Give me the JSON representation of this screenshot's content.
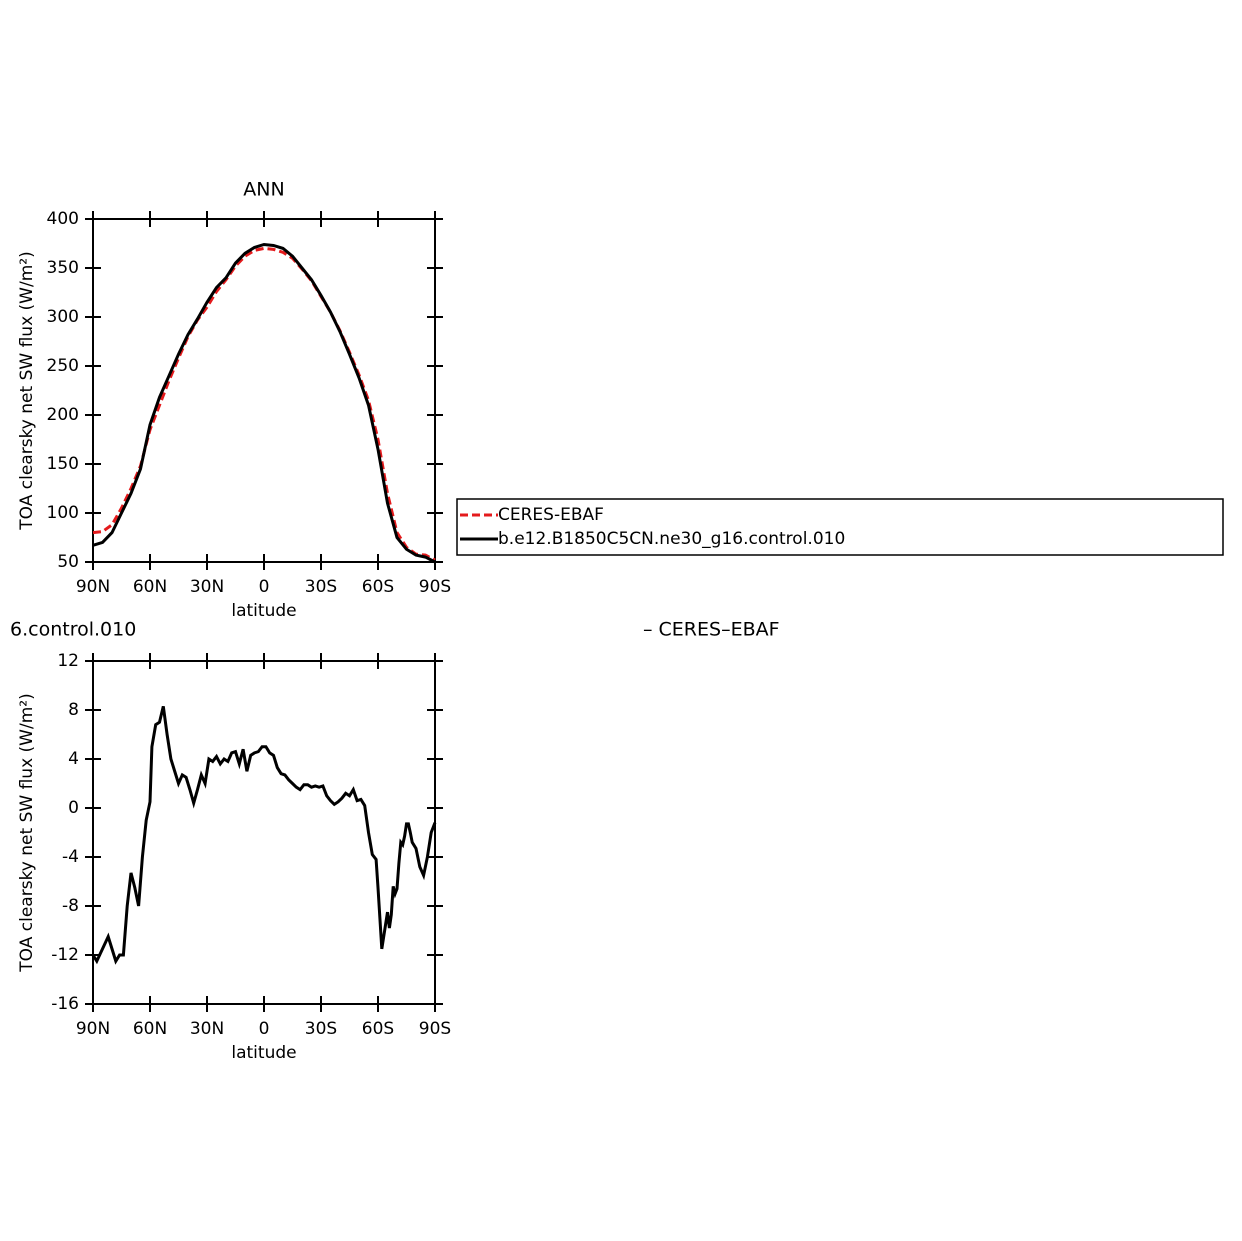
{
  "chart_data": [
    {
      "type": "line",
      "title": "ANN",
      "xlabel": "latitude",
      "ylabel": "TOA clearsky net SW flux (W/m²)",
      "xlim": [
        90,
        -90
      ],
      "xticks": [
        {
          "value": 90,
          "label": "90N"
        },
        {
          "value": 60,
          "label": "60N"
        },
        {
          "value": 30,
          "label": "30N"
        },
        0,
        {
          "value": -30,
          "label": "30S"
        },
        {
          "value": -60,
          "label": "60S"
        },
        {
          "value": -90,
          "label": "90S"
        }
      ],
      "ylim": [
        50,
        400
      ],
      "yticks": [
        50,
        100,
        150,
        200,
        250,
        300,
        350,
        400
      ],
      "legend": "right",
      "x": [
        90,
        85,
        80,
        75,
        70,
        65,
        60,
        55,
        50,
        45,
        40,
        35,
        30,
        25,
        20,
        15,
        10,
        5,
        0,
        -5,
        -10,
        -15,
        -20,
        -25,
        -30,
        -35,
        -40,
        -45,
        -50,
        -55,
        -60,
        -65,
        -70,
        -75,
        -80,
        -85,
        -90
      ],
      "series": [
        {
          "name": "CERES-EBAF",
          "color": "#e41a1c",
          "line_style": "dashed",
          "values": [
            80,
            81,
            88,
            105,
            125,
            148,
            185,
            210,
            235,
            258,
            280,
            297,
            310,
            326,
            338,
            352,
            362,
            368,
            370,
            369,
            366,
            360,
            349,
            337,
            321,
            305,
            286,
            264,
            241,
            215,
            175,
            120,
            80,
            65,
            58,
            57,
            52
          ]
        },
        {
          "name": "b.e12.B1850C5CN.ne30_g16.control.010",
          "color": "#000000",
          "line_style": "solid",
          "values": [
            67,
            70,
            80,
            100,
            120,
            145,
            190,
            218,
            240,
            262,
            282,
            298,
            315,
            330,
            340,
            355,
            365,
            371,
            374,
            373,
            370,
            362,
            350,
            338,
            322,
            305,
            285,
            262,
            238,
            210,
            165,
            110,
            75,
            63,
            57,
            55,
            50
          ]
        }
      ]
    },
    {
      "type": "line",
      "title": "6.control.010",
      "title_right": "– CERES–EBAF",
      "xlabel": "latitude",
      "ylabel": "TOA clearsky net SW flux (W/m²)",
      "xlim": [
        90,
        -90
      ],
      "xticks": [
        {
          "value": 90,
          "label": "90N"
        },
        {
          "value": 60,
          "label": "60N"
        },
        {
          "value": 30,
          "label": "30N"
        },
        0,
        {
          "value": -30,
          "label": "30S"
        },
        {
          "value": -60,
          "label": "60S"
        },
        {
          "value": -90,
          "label": "90S"
        }
      ],
      "ylim": [
        -16,
        12
      ],
      "yticks": [
        -16,
        -12,
        -8,
        -4,
        0,
        4,
        8,
        12
      ],
      "x": [
        90,
        88,
        85,
        82,
        80,
        78,
        76,
        74,
        72,
        70,
        68,
        66,
        64,
        62,
        60,
        59,
        57,
        55,
        53,
        51,
        49,
        47,
        45,
        43,
        41,
        39,
        37,
        35,
        33,
        31,
        29,
        27,
        25,
        23,
        21,
        19,
        17,
        15,
        13,
        11,
        9,
        7,
        5,
        3,
        1,
        -1,
        -3,
        -5,
        -7,
        -9,
        -11,
        -13,
        -15,
        -17,
        -19,
        -21,
        -23,
        -25,
        -27,
        -29,
        -31,
        -33,
        -35,
        -37,
        -39,
        -41,
        -43,
        -45,
        -47,
        -49,
        -51,
        -53,
        -55,
        -57,
        -59,
        -60,
        -61,
        -62,
        -64,
        -65,
        -66,
        -67,
        -68,
        -69,
        -70,
        -71,
        -72,
        -73,
        -74,
        -75,
        -76,
        -77,
        -78,
        -80,
        -82,
        -84,
        -86,
        -88,
        -90
      ],
      "series": [
        {
          "color": "#000000",
          "line_style": "solid",
          "values": [
            -12,
            -12.5,
            -11.5,
            -10.5,
            -11.5,
            -12.5,
            -12,
            -12,
            -8,
            -5.3,
            -6.5,
            -8,
            -4,
            -1,
            0.5,
            5,
            6.8,
            7,
            8.3,
            6,
            4,
            3,
            2,
            2.7,
            2.5,
            1.5,
            0.4,
            1.5,
            2.7,
            2,
            4,
            3.8,
            4.2,
            3.6,
            4,
            3.8,
            4.5,
            4.6,
            3.6,
            4.8,
            3,
            4.3,
            4.5,
            4.6,
            5,
            5,
            4.5,
            4.3,
            3.3,
            2.8,
            2.7,
            2.3,
            2,
            1.7,
            1.5,
            1.9,
            1.9,
            1.7,
            1.8,
            1.7,
            1.8,
            1,
            0.6,
            0.3,
            0.5,
            0.8,
            1.2,
            1,
            1.5,
            0.6,
            0.7,
            0.2,
            -2,
            -3.8,
            -4.2,
            -6.5,
            -9,
            -11.5,
            -9.5,
            -8.5,
            -9.8,
            -8.7,
            -6.4,
            -7,
            -6.6,
            -4.5,
            -2.8,
            -3,
            -2.3,
            -1.3,
            -1.3,
            -2,
            -2.8,
            -3.3,
            -4.8,
            -5.5,
            -4,
            -2,
            -1.2
          ]
        }
      ]
    }
  ]
}
